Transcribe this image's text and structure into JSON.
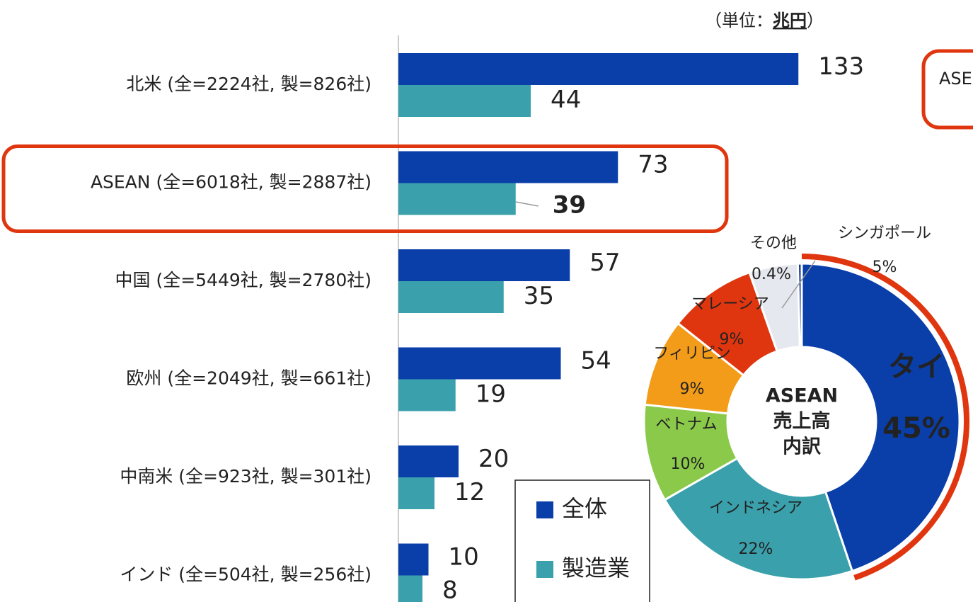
{
  "unit_note": {
    "prefix": "（単位：",
    "unit": "兆円",
    "suffix": "）"
  },
  "side_note": "ASE",
  "chart_data": [
    {
      "type": "bar",
      "orientation": "horizontal",
      "categories": [
        "北米 (全=2224社, 製=826社)",
        "ASEAN (全=6018社, 製=2887社)",
        "中国 (全=5449社, 製=2780社)",
        "欧州 (全=2049社, 製=661社)",
        "中南米 (全=923社, 製=301社)",
        "インド (全=504社, 製=256社)"
      ],
      "series": [
        {
          "name": "全体",
          "color": "#0a3ea8",
          "values": [
            133,
            73,
            57,
            54,
            20,
            10
          ]
        },
        {
          "name": "製造業",
          "color": "#3aa0ab",
          "values": [
            44,
            39,
            35,
            19,
            12,
            8
          ]
        }
      ],
      "xlim": [
        0,
        140
      ],
      "highlight_category": 1,
      "highlight_color": "#e0360f"
    },
    {
      "type": "donut",
      "center_label": [
        "ASEAN",
        "売上高",
        "内訳"
      ],
      "categories": [
        "タイ",
        "インドネシア",
        "ベトナム",
        "フィリピン",
        "マレーシア",
        "シンガポール",
        "その他"
      ],
      "values": [
        45,
        22,
        10,
        9,
        9,
        5,
        0.4
      ],
      "value_labels": [
        "45%",
        "22%",
        "10%",
        "9%",
        "9%",
        "5%",
        "0.4%"
      ],
      "colors": [
        "#0a3ea8",
        "#3aa0ab",
        "#8bc94a",
        "#f39c1a",
        "#e0360f",
        "#e6e8ef",
        "#1a3d8f"
      ],
      "highlight_category": 0,
      "highlight_color": "#e0360f"
    }
  ]
}
